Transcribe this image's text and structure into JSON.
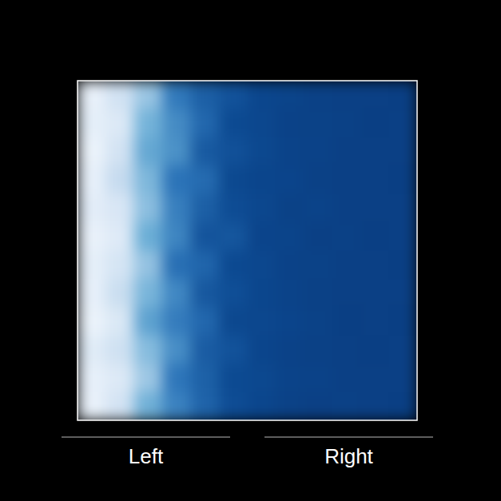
{
  "chart_data": {
    "type": "heatmap",
    "categories": [
      "Left",
      "Right"
    ],
    "clim": [
      0,
      1
    ],
    "cells": [
      [
        0.04,
        0.15,
        0.3,
        0.58,
        0.7,
        0.76,
        0.86,
        0.89,
        0.93,
        0.94,
        0.95,
        0.96
      ],
      [
        0.06,
        0.1,
        0.38,
        0.52,
        0.66,
        0.8,
        0.84,
        0.91,
        0.92,
        0.93,
        0.96,
        0.95
      ],
      [
        0.03,
        0.14,
        0.42,
        0.5,
        0.72,
        0.77,
        0.83,
        0.9,
        0.91,
        0.95,
        0.94,
        0.95
      ],
      [
        0.05,
        0.2,
        0.36,
        0.6,
        0.64,
        0.82,
        0.87,
        0.88,
        0.93,
        0.94,
        0.95,
        0.96
      ],
      [
        0.07,
        0.12,
        0.33,
        0.56,
        0.7,
        0.79,
        0.85,
        0.92,
        0.9,
        0.95,
        0.95,
        0.94
      ],
      [
        0.04,
        0.09,
        0.4,
        0.54,
        0.75,
        0.74,
        0.88,
        0.89,
        0.94,
        0.93,
        0.96,
        0.95
      ],
      [
        0.06,
        0.13,
        0.31,
        0.62,
        0.67,
        0.81,
        0.84,
        0.91,
        0.92,
        0.95,
        0.94,
        0.96
      ],
      [
        0.05,
        0.18,
        0.37,
        0.53,
        0.73,
        0.78,
        0.86,
        0.9,
        0.93,
        0.94,
        0.95,
        0.95
      ],
      [
        0.03,
        0.11,
        0.44,
        0.57,
        0.66,
        0.83,
        0.85,
        0.88,
        0.92,
        0.96,
        0.95,
        0.96
      ],
      [
        0.08,
        0.16,
        0.34,
        0.51,
        0.71,
        0.76,
        0.87,
        0.91,
        0.93,
        0.94,
        0.96,
        0.95
      ],
      [
        0.05,
        0.1,
        0.29,
        0.59,
        0.69,
        0.8,
        0.83,
        0.9,
        0.91,
        0.95,
        0.95,
        0.94
      ],
      [
        0.04,
        0.14,
        0.39,
        0.55,
        0.68,
        0.79,
        0.86,
        0.92,
        0.94,
        0.93,
        0.95,
        0.96
      ]
    ]
  }
}
